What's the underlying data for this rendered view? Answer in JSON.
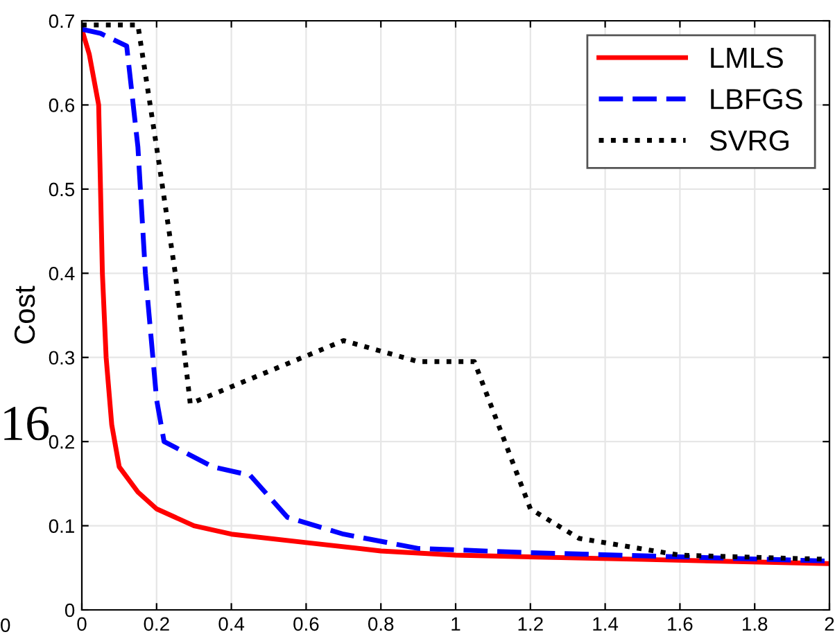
{
  "chart_data": {
    "type": "line",
    "ylabel": "Cost",
    "xlim": [
      0,
      2
    ],
    "ylim": [
      0,
      0.7
    ],
    "xticks": [
      0,
      0.2,
      0.4,
      0.6,
      0.8,
      1,
      1.2,
      1.4,
      1.6,
      1.8,
      2
    ],
    "yticks": [
      0,
      0.1,
      0.2,
      0.3,
      0.4,
      0.5,
      0.6,
      0.7
    ],
    "grid": true,
    "legend": "top right",
    "marker": "none",
    "annotations": [
      "16",
      "0"
    ],
    "series": [
      {
        "name": "LMLS",
        "color": "#ff0000",
        "line_style": "solid",
        "x": [
          0,
          0.02,
          0.045,
          0.055,
          0.065,
          0.08,
          0.1,
          0.15,
          0.2,
          0.3,
          0.4,
          0.6,
          0.8,
          1,
          1.5,
          2
        ],
        "values": [
          0.69,
          0.66,
          0.6,
          0.4,
          0.3,
          0.22,
          0.17,
          0.14,
          0.12,
          0.1,
          0.09,
          0.08,
          0.07,
          0.065,
          0.06,
          0.055
        ]
      },
      {
        "name": "LBFGS",
        "color": "#0000ff",
        "line_style": "dashed",
        "x": [
          0,
          0.05,
          0.12,
          0.15,
          0.17,
          0.2,
          0.22,
          0.35,
          0.45,
          0.55,
          0.7,
          0.9,
          1.2,
          1.6,
          2
        ],
        "values": [
          0.69,
          0.685,
          0.67,
          0.55,
          0.4,
          0.25,
          0.2,
          0.17,
          0.16,
          0.11,
          0.09,
          0.073,
          0.068,
          0.063,
          0.058
        ]
      },
      {
        "name": "SVRG",
        "color": "#000000",
        "line_style": "dotted",
        "x": [
          0,
          0.15,
          0.2,
          0.25,
          0.29,
          0.7,
          0.9,
          1.05,
          1.2,
          1.33,
          1.6,
          2
        ],
        "values": [
          0.695,
          0.695,
          0.55,
          0.4,
          0.245,
          0.32,
          0.295,
          0.295,
          0.12,
          0.085,
          0.065,
          0.06
        ]
      }
    ]
  }
}
